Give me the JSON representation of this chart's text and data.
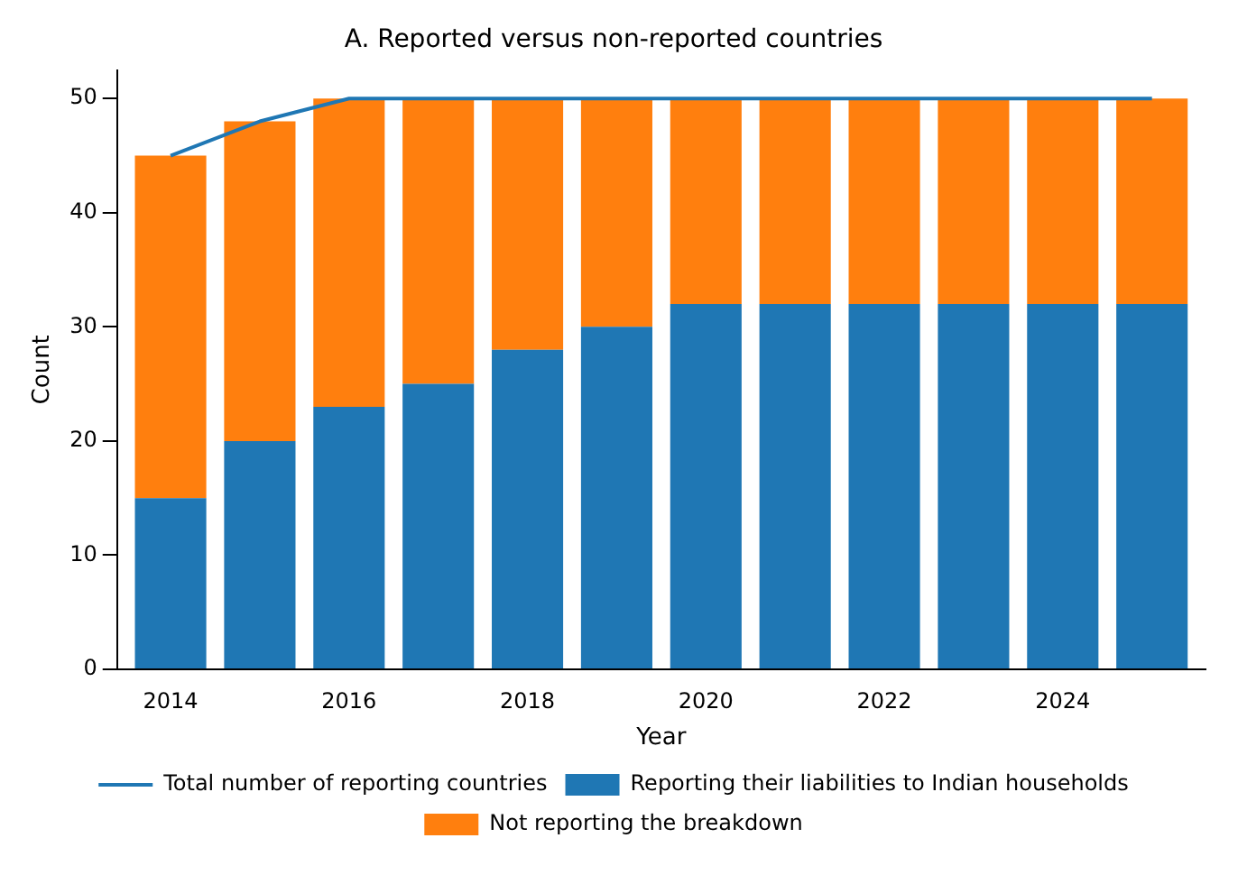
{
  "chart_data": {
    "type": "bar",
    "title": "A. Reported versus non-reported countries",
    "xlabel": "Year",
    "ylabel": "Count",
    "x": [
      2014,
      2015,
      2016,
      2017,
      2018,
      2019,
      2020,
      2021,
      2022,
      2023,
      2024,
      2025
    ],
    "series": [
      {
        "name": "Total number of reporting countries",
        "type": "line",
        "color": "#1f77b4",
        "values": [
          45,
          48,
          50,
          50,
          50,
          50,
          50,
          50,
          50,
          50,
          50,
          50
        ]
      },
      {
        "name": "Reporting their liabilities to Indian households",
        "color": "#1f77b4",
        "values": [
          15,
          20,
          23,
          25,
          28,
          30,
          32,
          32,
          32,
          32,
          32,
          32
        ]
      },
      {
        "name": "Not reporting the breakdown",
        "color": "#ff7f0e",
        "values": [
          30,
          28,
          27,
          25,
          22,
          20,
          18,
          18,
          18,
          18,
          18,
          18
        ]
      }
    ],
    "stacked": true,
    "xlim": [
      2013.4,
      2025.6
    ],
    "xticks": [
      2014,
      2016,
      2018,
      2020,
      2022,
      2024
    ],
    "ylim": [
      0,
      52.5
    ],
    "yticks": [
      0,
      10,
      20,
      30,
      40,
      50
    ],
    "grid": false,
    "legend": "bottom"
  }
}
